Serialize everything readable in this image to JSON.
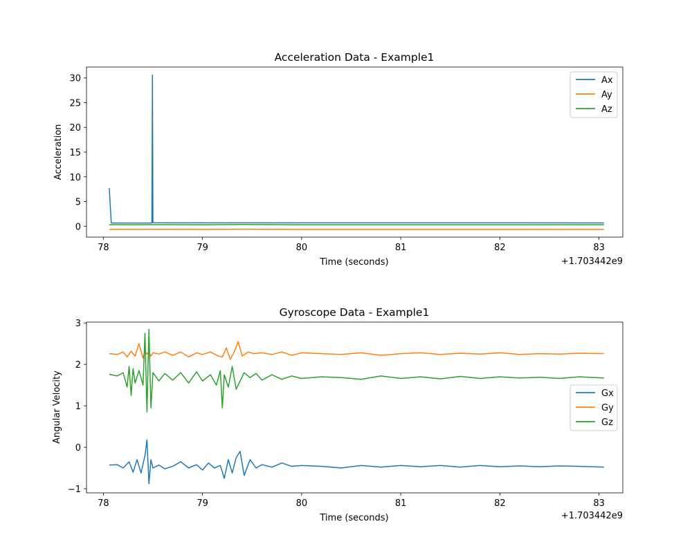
{
  "chart_data": [
    {
      "type": "line",
      "title": "Acceleration Data - Example1",
      "xlabel": "Time (seconds)",
      "ylabel": "Acceleration",
      "x_offset_label": "+1.703442e9",
      "xlim": [
        77.83,
        83.24
      ],
      "ylim": [
        -2.2,
        32.2
      ],
      "xticks": [
        78,
        79,
        80,
        81,
        82,
        83
      ],
      "yticks": [
        0,
        5,
        10,
        15,
        20,
        25,
        30
      ],
      "legend_position": "top-right",
      "grid": false,
      "series": [
        {
          "name": "Ax",
          "color": "#1f77b4",
          "x": [
            78.06,
            78.08,
            78.49,
            78.495,
            78.5,
            79.0,
            80.0,
            81.0,
            82.0,
            83.05
          ],
          "y": [
            7.7,
            0.65,
            0.65,
            30.6,
            0.7,
            0.68,
            0.68,
            0.68,
            0.68,
            0.66
          ]
        },
        {
          "name": "Ay",
          "color": "#ff7f0e",
          "x": [
            78.06,
            78.5,
            79.0,
            79.4,
            80.0,
            81.0,
            82.0,
            83.05
          ],
          "y": [
            -0.65,
            -0.62,
            -0.65,
            -0.6,
            -0.65,
            -0.65,
            -0.65,
            -0.65
          ]
        },
        {
          "name": "Az",
          "color": "#2ca02c",
          "x": [
            78.06,
            78.5,
            79.0,
            79.4,
            80.0,
            81.0,
            82.0,
            83.05
          ],
          "y": [
            0.3,
            0.32,
            0.3,
            0.35,
            0.3,
            0.3,
            0.3,
            0.3
          ]
        }
      ]
    },
    {
      "type": "line",
      "title": "Gyroscope Data - Example1",
      "xlabel": "Time (seconds)",
      "ylabel": "Angular Velocity",
      "x_offset_label": "+1.703442e9",
      "xlim": [
        77.83,
        83.24
      ],
      "ylim": [
        -1.1,
        3.02
      ],
      "xticks": [
        78,
        79,
        80,
        81,
        82,
        83
      ],
      "yticks": [
        -1,
        0,
        1,
        2,
        3
      ],
      "legend_position": "center-right",
      "grid": false,
      "series": [
        {
          "name": "Gx",
          "color": "#1f77b4",
          "x": [
            78.06,
            78.14,
            78.2,
            78.26,
            78.3,
            78.34,
            78.38,
            78.42,
            78.44,
            78.46,
            78.48,
            78.5,
            78.56,
            78.62,
            78.7,
            78.78,
            78.86,
            78.94,
            79.0,
            79.06,
            79.12,
            79.18,
            79.22,
            79.26,
            79.3,
            79.34,
            79.38,
            79.42,
            79.48,
            79.54,
            79.6,
            79.7,
            79.8,
            79.9,
            80.0,
            80.2,
            80.4,
            80.6,
            80.8,
            81.0,
            81.2,
            81.4,
            81.6,
            81.8,
            82.0,
            82.2,
            82.4,
            82.6,
            82.8,
            83.05
          ],
          "y": [
            -0.43,
            -0.42,
            -0.5,
            -0.35,
            -0.6,
            -0.3,
            -0.62,
            -0.2,
            0.18,
            -0.88,
            -0.3,
            -0.5,
            -0.43,
            -0.52,
            -0.46,
            -0.35,
            -0.5,
            -0.42,
            -0.55,
            -0.38,
            -0.5,
            -0.44,
            -0.75,
            -0.3,
            -0.62,
            -0.25,
            -0.1,
            -0.68,
            -0.3,
            -0.5,
            -0.42,
            -0.48,
            -0.38,
            -0.46,
            -0.44,
            -0.46,
            -0.5,
            -0.44,
            -0.48,
            -0.44,
            -0.47,
            -0.44,
            -0.48,
            -0.44,
            -0.47,
            -0.45,
            -0.47,
            -0.45,
            -0.46,
            -0.48
          ]
        },
        {
          "name": "Gy",
          "color": "#ff7f0e",
          "x": [
            78.06,
            78.14,
            78.2,
            78.24,
            78.28,
            78.32,
            78.36,
            78.4,
            78.42,
            78.44,
            78.46,
            78.48,
            78.5,
            78.56,
            78.62,
            78.7,
            78.78,
            78.86,
            78.94,
            79.0,
            79.08,
            79.16,
            79.2,
            79.24,
            79.28,
            79.32,
            79.36,
            79.4,
            79.46,
            79.52,
            79.6,
            79.7,
            79.8,
            79.9,
            80.0,
            80.2,
            80.4,
            80.6,
            80.8,
            81.0,
            81.2,
            81.4,
            81.6,
            81.8,
            82.0,
            82.2,
            82.4,
            82.6,
            82.8,
            83.05
          ],
          "y": [
            2.26,
            2.24,
            2.3,
            2.18,
            2.32,
            2.2,
            2.5,
            2.15,
            2.32,
            2.25,
            2.3,
            2.2,
            2.28,
            2.25,
            2.3,
            2.22,
            2.3,
            2.18,
            2.28,
            2.24,
            2.3,
            2.2,
            2.18,
            2.4,
            2.12,
            2.3,
            2.55,
            2.2,
            2.3,
            2.26,
            2.28,
            2.24,
            2.3,
            2.22,
            2.28,
            2.26,
            2.24,
            2.28,
            2.22,
            2.26,
            2.28,
            2.24,
            2.27,
            2.25,
            2.28,
            2.24,
            2.26,
            2.25,
            2.27,
            2.26
          ]
        },
        {
          "name": "Gz",
          "color": "#2ca02c",
          "x": [
            78.06,
            78.14,
            78.2,
            78.24,
            78.26,
            78.28,
            78.3,
            78.32,
            78.36,
            78.4,
            78.42,
            78.44,
            78.46,
            78.48,
            78.5,
            78.56,
            78.62,
            78.7,
            78.78,
            78.86,
            78.94,
            79.0,
            79.08,
            79.14,
            79.18,
            79.2,
            79.22,
            79.26,
            79.3,
            79.34,
            79.38,
            79.42,
            79.48,
            79.54,
            79.6,
            79.7,
            79.8,
            79.9,
            80.0,
            80.2,
            80.4,
            80.6,
            80.8,
            81.0,
            81.2,
            81.4,
            81.6,
            81.8,
            82.0,
            82.2,
            82.4,
            82.6,
            82.8,
            83.05
          ],
          "y": [
            1.76,
            1.72,
            1.8,
            1.45,
            1.95,
            1.25,
            1.9,
            1.55,
            1.85,
            1.5,
            2.75,
            0.85,
            2.85,
            0.95,
            1.8,
            1.6,
            1.78,
            1.62,
            1.8,
            1.55,
            1.82,
            1.6,
            1.75,
            1.5,
            1.85,
            0.95,
            1.75,
            1.45,
            1.95,
            1.4,
            1.6,
            1.8,
            1.68,
            1.78,
            1.62,
            1.75,
            1.64,
            1.72,
            1.66,
            1.7,
            1.68,
            1.64,
            1.72,
            1.66,
            1.7,
            1.65,
            1.71,
            1.66,
            1.7,
            1.67,
            1.69,
            1.66,
            1.7,
            1.67
          ]
        }
      ]
    }
  ]
}
